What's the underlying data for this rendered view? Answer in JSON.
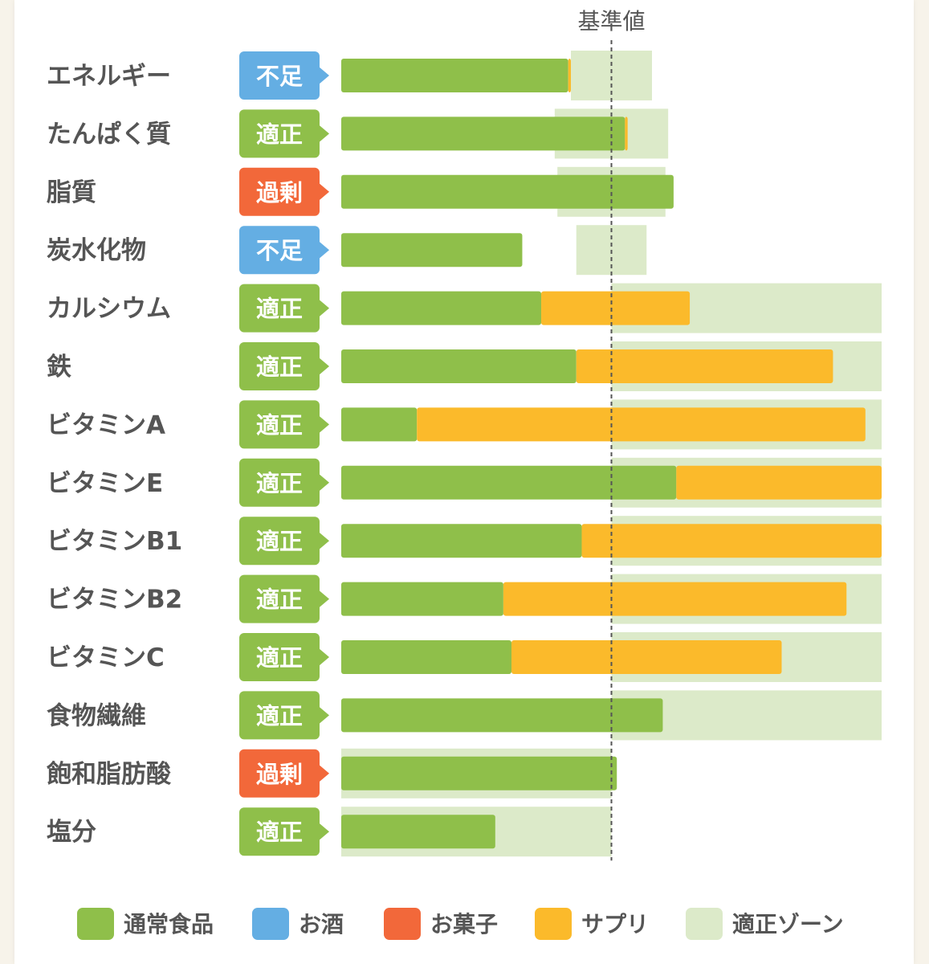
{
  "chart_data": {
    "type": "bar",
    "orientation": "horizontal",
    "stacked": true,
    "reference_label": "基準値",
    "reference_value": 100,
    "x_max": 200,
    "colors": {
      "通常食品": "#8fbf4a",
      "お酒": "#64aee3",
      "お菓子": "#f2683a",
      "サプリ": "#fbba2b",
      "適正ゾーン": "#dceac9"
    },
    "status_colors": {
      "不足": "#64aee3",
      "適正": "#8fbf4a",
      "過剰": "#f2683a"
    },
    "series": [
      {
        "name": "通常食品",
        "color": "#8fbf4a"
      },
      {
        "name": "お酒",
        "color": "#64aee3"
      },
      {
        "name": "お菓子",
        "color": "#f2683a"
      },
      {
        "name": "サプリ",
        "color": "#fbba2b"
      }
    ],
    "zone_legend": {
      "name": "適正ゾーン",
      "color": "#dceac9"
    },
    "rows": [
      {
        "label": "エネルギー",
        "status": "不足",
        "values": {
          "通常食品": 84,
          "お酒": 0,
          "お菓子": 0,
          "サプリ": 1
        },
        "zone": [
          85,
          115
        ]
      },
      {
        "label": "たんぱく質",
        "status": "適正",
        "values": {
          "通常食品": 105,
          "お酒": 0,
          "お菓子": 0,
          "サプリ": 1
        },
        "zone": [
          79,
          121
        ]
      },
      {
        "label": "脂質",
        "status": "過剰",
        "values": {
          "通常食品": 123,
          "お酒": 0,
          "お菓子": 0,
          "サプリ": 0
        },
        "zone": [
          80,
          120
        ]
      },
      {
        "label": "炭水化物",
        "status": "不足",
        "values": {
          "通常食品": 67,
          "お酒": 0,
          "お菓子": 0,
          "サプリ": 0
        },
        "zone": [
          87,
          113
        ]
      },
      {
        "label": "カルシウム",
        "status": "適正",
        "values": {
          "通常食品": 74,
          "お酒": 0,
          "お菓子": 0,
          "サプリ": 55
        },
        "zone": [
          100,
          200
        ]
      },
      {
        "label": "鉄",
        "status": "適正",
        "values": {
          "通常食品": 87,
          "お酒": 0,
          "お菓子": 0,
          "サプリ": 95
        },
        "zone": [
          100,
          200
        ]
      },
      {
        "label": "ビタミンA",
        "status": "適正",
        "values": {
          "通常食品": 28,
          "お酒": 0,
          "お菓子": 0,
          "サプリ": 166
        },
        "zone": [
          100,
          200
        ]
      },
      {
        "label": "ビタミンE",
        "status": "適正",
        "values": {
          "通常食品": 124,
          "お酒": 0,
          "お菓子": 0,
          "サプリ": 76
        },
        "zone": [
          100,
          200
        ]
      },
      {
        "label": "ビタミンB1",
        "status": "適正",
        "values": {
          "通常食品": 89,
          "お酒": 0,
          "お菓子": 0,
          "サプリ": 111
        },
        "zone": [
          100,
          200
        ]
      },
      {
        "label": "ビタミンB2",
        "status": "適正",
        "values": {
          "通常食品": 60,
          "お酒": 0,
          "お菓子": 0,
          "サプリ": 127
        },
        "zone": [
          100,
          200
        ]
      },
      {
        "label": "ビタミンC",
        "status": "適正",
        "values": {
          "通常食品": 63,
          "お酒": 0,
          "お菓子": 0,
          "サプリ": 100
        },
        "zone": [
          100,
          200
        ]
      },
      {
        "label": "食物繊維",
        "status": "適正",
        "values": {
          "通常食品": 119,
          "お酒": 0,
          "お菓子": 0,
          "サプリ": 0
        },
        "zone": [
          100,
          200
        ]
      },
      {
        "label": "飽和脂肪酸",
        "status": "過剰",
        "values": {
          "通常食品": 102,
          "お酒": 0,
          "お菓子": 0,
          "サプリ": 0
        },
        "zone": [
          0,
          100
        ]
      },
      {
        "label": "塩分",
        "status": "適正",
        "values": {
          "通常食品": 57,
          "お酒": 0,
          "お菓子": 0,
          "サプリ": 0
        },
        "zone": [
          0,
          100
        ]
      }
    ]
  }
}
